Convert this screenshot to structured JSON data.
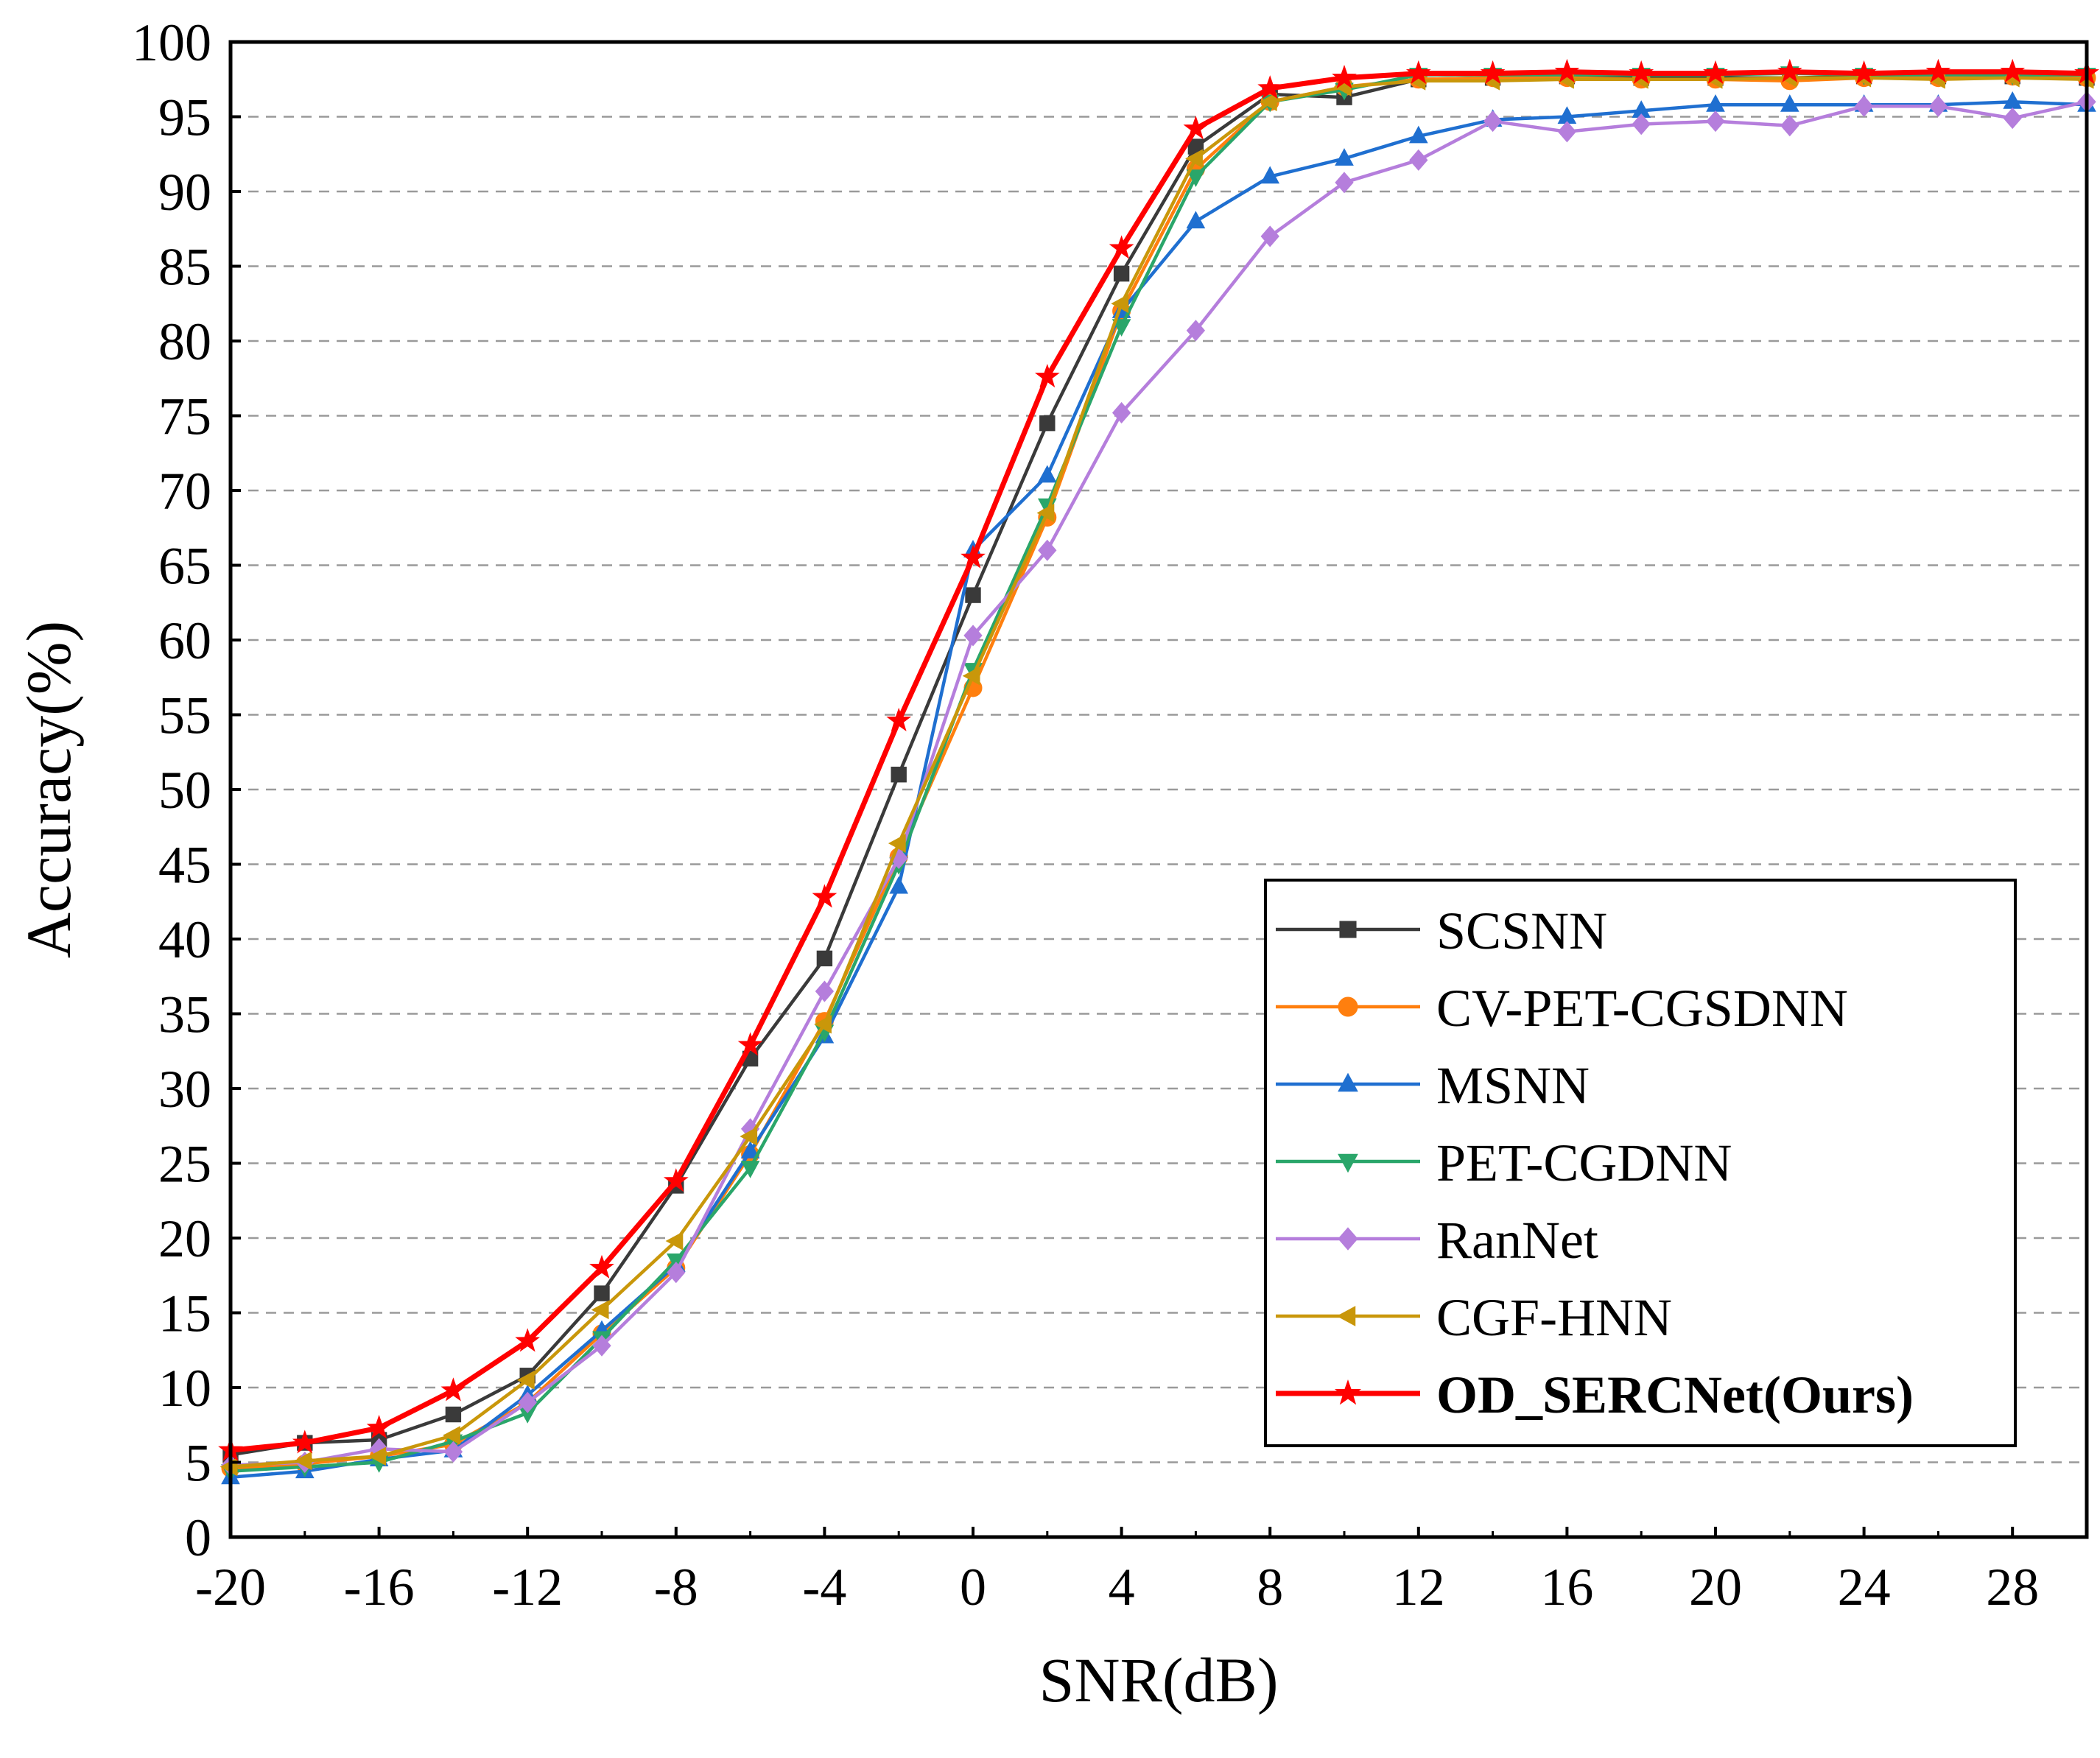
{
  "chart_data": {
    "type": "line",
    "title": "",
    "xlabel": "SNR(dB)",
    "ylabel": "Accuracy(%)",
    "xlim": [
      -20,
      30
    ],
    "ylim": [
      0,
      100
    ],
    "x_ticks": [
      -20,
      -16,
      -12,
      -8,
      -4,
      0,
      4,
      8,
      12,
      16,
      20,
      24,
      28
    ],
    "y_ticks": [
      0,
      5,
      10,
      15,
      20,
      25,
      30,
      35,
      40,
      45,
      50,
      55,
      60,
      65,
      70,
      75,
      80,
      85,
      90,
      95,
      100
    ],
    "grid": "horizontal dashed",
    "legend_position": "bottom-right",
    "x": [
      -20,
      -18,
      -16,
      -14,
      -12,
      -10,
      -8,
      -6,
      -4,
      -2,
      0,
      2,
      4,
      6,
      8,
      10,
      12,
      14,
      16,
      18,
      20,
      22,
      24,
      26,
      28,
      30
    ],
    "series": [
      {
        "name": "SCSNN",
        "color": "#3a3a3a",
        "marker": "square",
        "bold": false,
        "values": [
          5.5,
          6.3,
          6.5,
          8.2,
          10.8,
          16.3,
          23.5,
          32.0,
          38.7,
          51.0,
          63.0,
          74.5,
          84.5,
          93.0,
          96.5,
          96.3,
          97.5,
          97.6,
          97.7,
          97.6,
          97.6,
          97.6,
          97.7,
          97.7,
          97.7,
          97.6
        ]
      },
      {
        "name": "CV-PET-CGSDNN",
        "color": "#ff7f0e",
        "marker": "circle",
        "bold": false,
        "values": [
          4.6,
          4.9,
          5.4,
          6.2,
          9.0,
          13.6,
          18.0,
          25.6,
          34.5,
          45.5,
          56.8,
          68.2,
          82.0,
          91.5,
          96.0,
          97.0,
          97.5,
          97.6,
          97.6,
          97.5,
          97.5,
          97.4,
          97.6,
          97.6,
          97.7,
          97.6
        ]
      },
      {
        "name": "MSNN",
        "color": "#1f6fd0",
        "marker": "triangle-up",
        "bold": false,
        "values": [
          4.0,
          4.4,
          5.2,
          5.8,
          9.5,
          13.8,
          18.2,
          25.8,
          33.5,
          43.5,
          66.0,
          71.0,
          82.0,
          88.0,
          91.0,
          92.2,
          93.7,
          94.8,
          95.0,
          95.4,
          95.8,
          95.8,
          95.8,
          95.8,
          96.0,
          95.8
        ]
      },
      {
        "name": "PET-CGDNN",
        "color": "#2aa66a",
        "marker": "triangle-down",
        "bold": false,
        "values": [
          4.4,
          4.7,
          5.0,
          6.4,
          8.3,
          13.3,
          18.5,
          24.7,
          33.8,
          45.0,
          58.0,
          69.0,
          81.0,
          91.0,
          96.0,
          96.8,
          97.8,
          97.8,
          97.8,
          97.8,
          97.8,
          97.9,
          97.8,
          97.8,
          97.8,
          97.8
        ]
      },
      {
        "name": "RanNet",
        "color": "#b57edc",
        "marker": "diamond",
        "bold": false,
        "values": [
          4.8,
          5.0,
          5.9,
          5.7,
          9.0,
          12.8,
          17.7,
          27.3,
          36.5,
          45.4,
          60.3,
          66.0,
          75.2,
          80.7,
          87.0,
          90.6,
          92.1,
          94.7,
          94.0,
          94.5,
          94.7,
          94.4,
          95.7,
          95.7,
          94.9,
          96.0
        ]
      },
      {
        "name": "CGF-HNN",
        "color": "#c9970a",
        "marker": "triangle-left",
        "bold": false,
        "values": [
          4.7,
          5.1,
          5.4,
          6.8,
          10.5,
          15.2,
          19.8,
          26.8,
          34.3,
          46.4,
          57.6,
          68.5,
          82.5,
          92.2,
          96.0,
          97.0,
          97.4,
          97.4,
          97.5,
          97.5,
          97.5,
          97.6,
          97.6,
          97.5,
          97.6,
          97.5
        ]
      },
      {
        "name": "OD_SERCNet(Ours)",
        "color": "#ff0000",
        "marker": "star",
        "bold": true,
        "values": [
          5.8,
          6.3,
          7.3,
          9.8,
          13.1,
          18.0,
          23.8,
          32.9,
          42.8,
          54.6,
          65.5,
          77.6,
          86.2,
          94.2,
          96.9,
          97.6,
          97.9,
          97.9,
          98.0,
          97.9,
          97.9,
          98.0,
          97.9,
          98.0,
          98.0,
          97.9
        ]
      }
    ]
  }
}
